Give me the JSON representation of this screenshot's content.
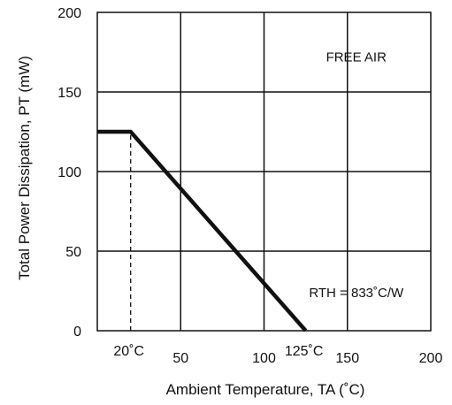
{
  "chart_data": {
    "type": "line",
    "xlabel": "Ambient Temperature, TA (˚C)",
    "ylabel": "Total Power Dissipation, PT (mW)",
    "xlim": [
      0,
      200
    ],
    "ylim": [
      0,
      200
    ],
    "grid": true,
    "x_ticks": [
      50,
      100,
      150,
      200
    ],
    "y_ticks": [
      0,
      50,
      100,
      150,
      200
    ],
    "extra_x_labels": [
      {
        "x": 20,
        "label": "20˚C"
      },
      {
        "x": 125,
        "label": "125˚C"
      }
    ],
    "series": [
      {
        "x": [
          0,
          20,
          125
        ],
        "y": [
          125,
          125,
          0
        ]
      }
    ],
    "dashed_reference": {
      "x": 20,
      "y": [
        0,
        125
      ]
    },
    "annotations": [
      {
        "text": "FREE AIR",
        "x": 150,
        "y": 172
      },
      {
        "text": "RTH = 833˚C/W",
        "x": 150,
        "y": 24
      }
    ]
  }
}
